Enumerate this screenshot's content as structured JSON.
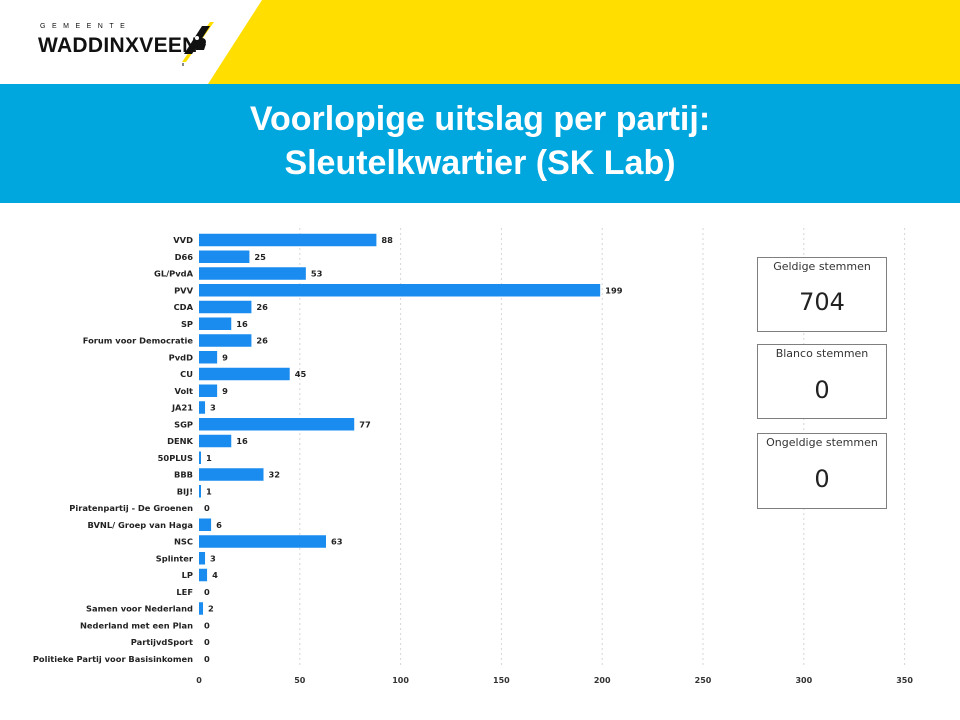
{
  "logo": {
    "small": "GEMEENTE",
    "main": "WADDINXVEEN"
  },
  "title": {
    "line1": "Voorlopige uitslag per partij:",
    "line2": "Sleutelkwartier (SK Lab)"
  },
  "colors": {
    "yellow": "#ffde00",
    "blue": "#00a6de",
    "bar": "#1a8cf0"
  },
  "cards": [
    {
      "label": "Geldige stemmen",
      "value": "704"
    },
    {
      "label": "Blanco stemmen",
      "value": "0"
    },
    {
      "label": "Ongeldige stemmen",
      "value": "0"
    }
  ],
  "chart_data": {
    "type": "bar",
    "orientation": "horizontal",
    "title": "",
    "xlabel": "",
    "ylabel": "",
    "xlim": [
      0,
      350
    ],
    "xticks": [
      0,
      50,
      100,
      150,
      200,
      250,
      300,
      350
    ],
    "grid": true,
    "legend": "none",
    "categories": [
      "VVD",
      "D66",
      "GL/PvdA",
      "PVV",
      "CDA",
      "SP",
      "Forum voor Democratie",
      "PvdD",
      "CU",
      "Volt",
      "JA21",
      "SGP",
      "DENK",
      "50PLUS",
      "BBB",
      "BIJ!",
      "Piratenpartij - De Groenen",
      "BVNL/ Groep van Haga",
      "NSC",
      "Splinter",
      "LP",
      "LEF",
      "Samen voor Nederland",
      "Nederland met een Plan",
      "PartijvdSport",
      "Politieke Partij voor Basisinkomen"
    ],
    "values": [
      88,
      25,
      53,
      199,
      26,
      16,
      26,
      9,
      45,
      9,
      3,
      77,
      16,
      1,
      32,
      1,
      0,
      6,
      63,
      3,
      4,
      0,
      2,
      0,
      0,
      0
    ]
  }
}
